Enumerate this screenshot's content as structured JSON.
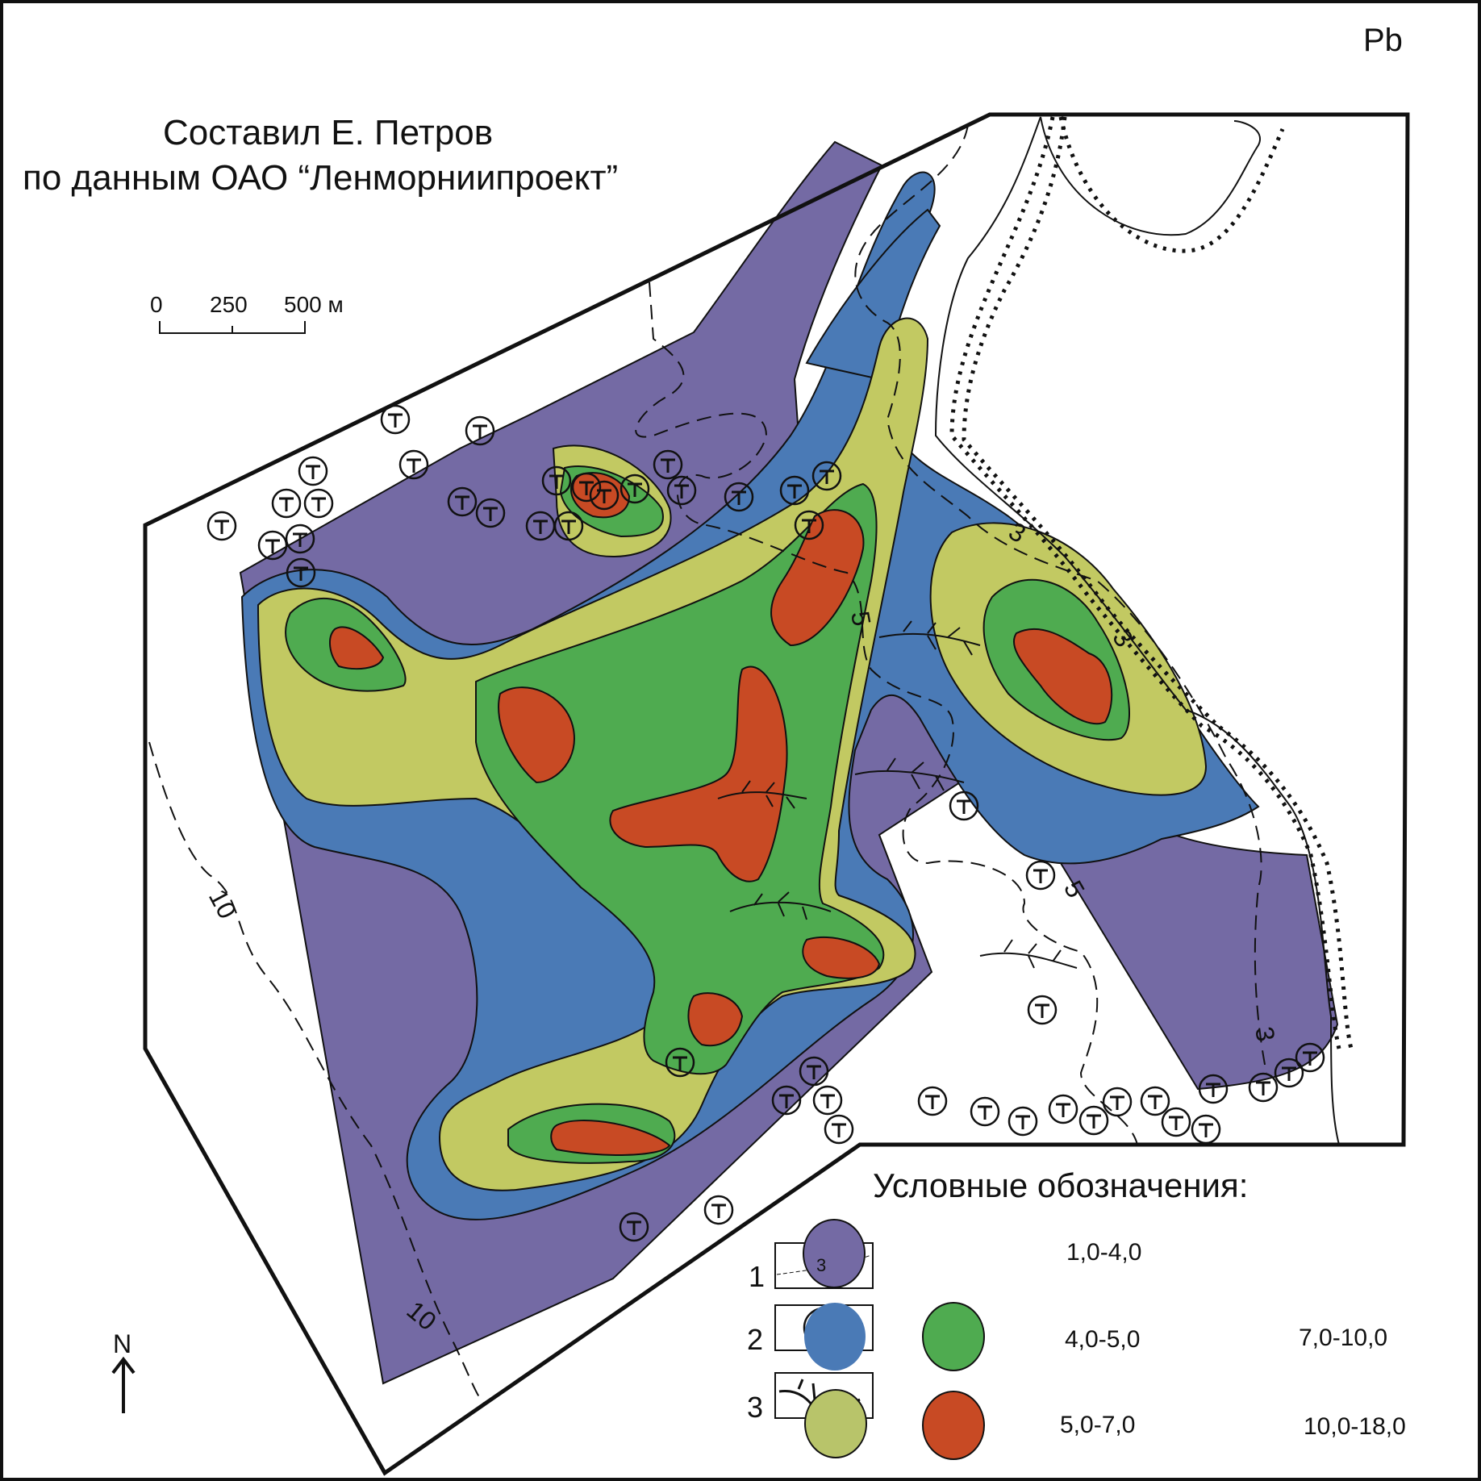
{
  "element": "Pb",
  "credits": {
    "line1": "Составил Е. Петров",
    "line2": "по данным ОАО “Ленморниипроект”"
  },
  "scale_bar": {
    "ticks": [
      "0",
      "250",
      "500 м"
    ]
  },
  "north_arrow": {
    "label": "N"
  },
  "contour_labels": [
    "10",
    "10",
    "5",
    "5",
    "3",
    "3",
    "3"
  ],
  "legend": {
    "title": "Условные обозначения:",
    "symbols": [
      {
        "number": "1",
        "sample_label": "3",
        "icon": "dashed-isoline"
      },
      {
        "number": "2",
        "sample_label": "Т",
        "icon": "circled-t-sample-point"
      },
      {
        "number": "3",
        "icon": "drainage-network"
      }
    ],
    "classes": [
      {
        "range": "1,0-4,0",
        "color": "#746aa4"
      },
      {
        "range": "4,0-5,0",
        "color": "#4a7ab6"
      },
      {
        "range": "5,0-7,0",
        "color": "#c2c962"
      },
      {
        "range": "7,0-10,0",
        "color": "#4fab50"
      },
      {
        "range": "10,0-18,0",
        "color": "#c84a24"
      }
    ]
  },
  "sample_marker_glyph": "Т"
}
